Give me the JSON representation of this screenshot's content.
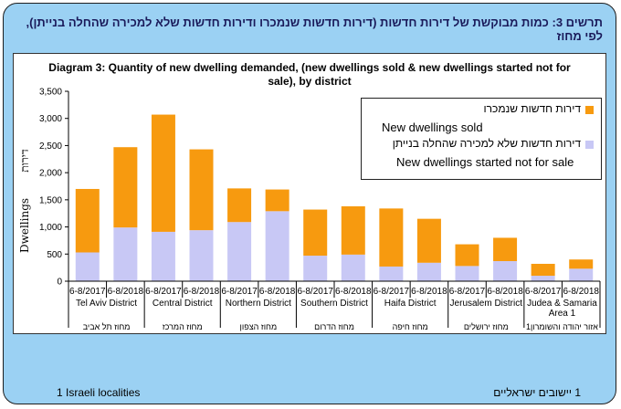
{
  "hebrew_title": "תרשים 3: כמות מבוקשת של דירות חדשות (דירות חדשות שנמכרו ודירות חדשות שלא למכירה שהחלה בנייתן), לפי מחוז",
  "footnote_en": "1 Israeli localities",
  "footnote_he": "1 יישובים ישראליים",
  "colors": {
    "sold": "#f79a0f",
    "not_for_sale": "#c8c8f5",
    "frame": "#9bd1f3"
  },
  "chart_data": {
    "type": "bar",
    "stacked": true,
    "title": "Diagram 3:  Quantity of new dwelling demanded, (new dwellings sold & new dwellings started not for sale), by district",
    "ylabel": "Dwellings",
    "ylabel_he": "דירות",
    "ylim": [
      0,
      3500
    ],
    "yticks": [
      "0",
      "500",
      "1,000",
      "1,500",
      "2,000",
      "2,500",
      "3,000",
      "3,500"
    ],
    "ytick_values": [
      0,
      500,
      1000,
      1500,
      2000,
      2500,
      3000,
      3500
    ],
    "categories": [
      "6-8/2017",
      "6-8/2018",
      "6-8/2017",
      "6-8/2018",
      "6-8/2017",
      "6-8/2018",
      "6-8/2017",
      "6-8/2018",
      "6-8/2017",
      "6-8/2018",
      "6-8/2017",
      "6-8/2018",
      "6-8/2017",
      "6-8/2018"
    ],
    "districts": [
      {
        "en": "Tel Aviv District",
        "he": "מחוז תל אביב"
      },
      {
        "en": "Central District",
        "he": "מחוז המרכז"
      },
      {
        "en": "Northern District",
        "he": "מחוז הצפון"
      },
      {
        "en": "Southern District",
        "he": "מחוז הדרום"
      },
      {
        "en": "Haifa District",
        "he": "מחוז חיפה"
      },
      {
        "en": "Jerusalem District",
        "he": "מחוז ירושלים"
      },
      {
        "en": "Judea & Samaria Area 1",
        "he": "אזור יהודה והשומרון1"
      }
    ],
    "series": [
      {
        "name": "New dwellings started not for sale",
        "name_he": "דירות חדשות שלא למכירה שהחלה בנייתן",
        "values": [
          530,
          990,
          910,
          940,
          1090,
          1290,
          470,
          490,
          270,
          340,
          280,
          370,
          100,
          230
        ]
      },
      {
        "name": "New dwellings sold",
        "name_he": "דירות חדשות שנמכרו",
        "values": [
          1170,
          1480,
          2160,
          1490,
          620,
          400,
          850,
          890,
          1070,
          810,
          400,
          430,
          220,
          170
        ]
      }
    ],
    "legend_position": "top-right",
    "grid": false
  }
}
